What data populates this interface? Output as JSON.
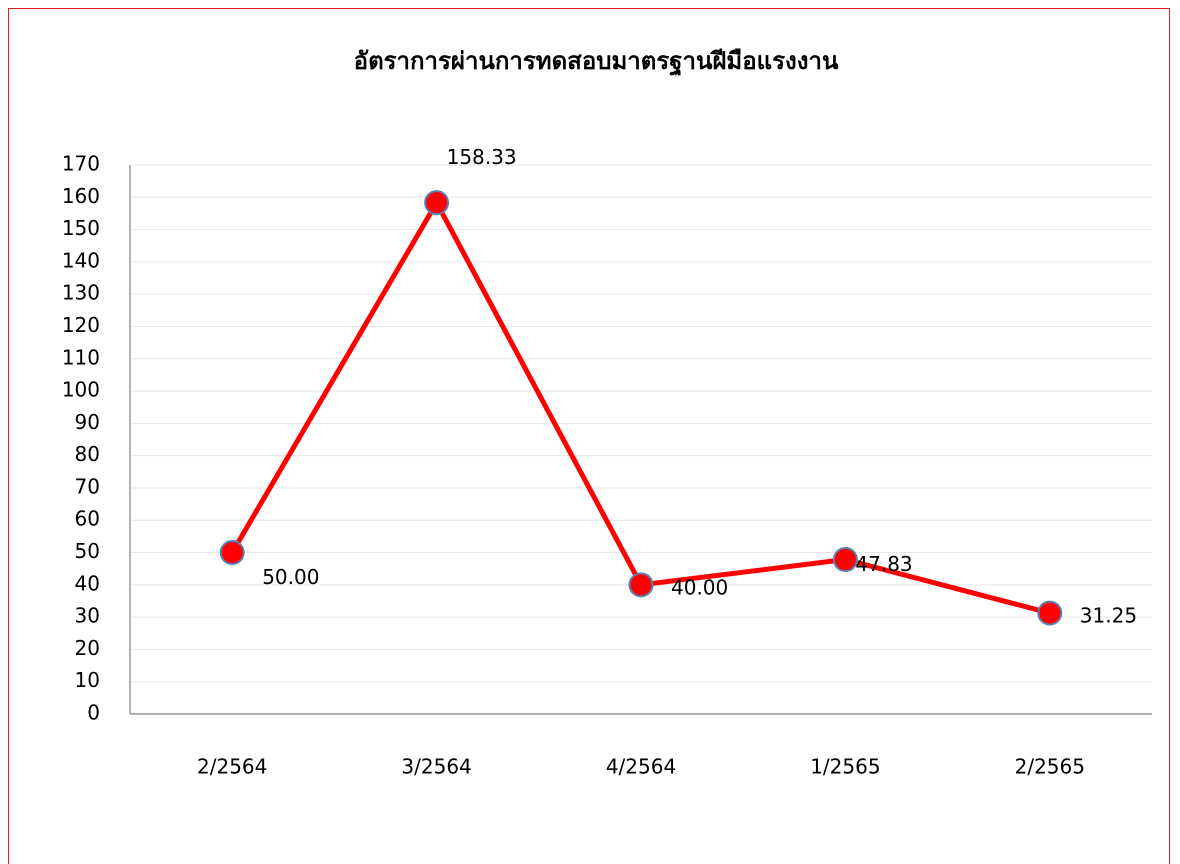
{
  "chart_data": {
    "type": "line",
    "title": "อัตราการผ่านการทดสอบมาตรฐานฝีมือแรงงาน",
    "categories": [
      "2/2564",
      "3/2564",
      "4/2564",
      "1/2565",
      "2/2565"
    ],
    "series": [
      {
        "name": "อัตราการผ่าน",
        "color": "#ff0000",
        "values": [
          50,
          158.33,
          40,
          47.83,
          31.25
        ],
        "value_labels": [
          "50.00",
          "158.33",
          "40.00",
          "47.83",
          "31.25"
        ]
      }
    ],
    "ylim": [
      0,
      170
    ],
    "yticks": [
      0,
      10,
      20,
      30,
      40,
      50,
      60,
      70,
      80,
      90,
      100,
      110,
      120,
      130,
      140,
      150,
      160,
      170
    ],
    "grid": true
  }
}
